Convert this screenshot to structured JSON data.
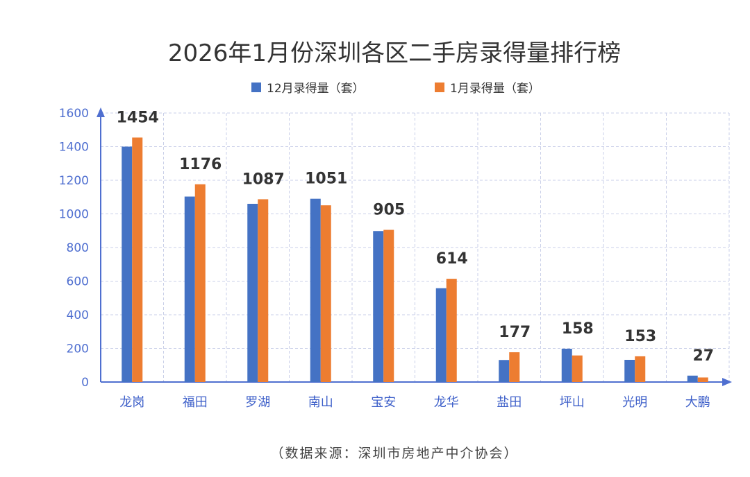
{
  "chart_data": {
    "type": "bar",
    "title": "2026年1月份深圳各区二手房录得量排行榜",
    "categories": [
      "龙岗",
      "福田",
      "罗湖",
      "南山",
      "宝安",
      "龙华",
      "盐田",
      "坪山",
      "光明",
      "大鹏"
    ],
    "series": [
      {
        "name": "12月录得量（套）",
        "values": [
          1400,
          1103,
          1060,
          1090,
          898,
          558,
          131,
          198,
          132,
          38
        ],
        "color": "#4472c4"
      },
      {
        "name": "1月录得量（套）",
        "values": [
          1454,
          1176,
          1087,
          1051,
          905,
          614,
          177,
          158,
          153,
          27
        ],
        "color": "#ed7d31"
      }
    ],
    "data_labels": [
      "1454",
      "1176",
      "1087",
      "1051",
      "905",
      "614",
      "177",
      "158",
      "153",
      "27"
    ],
    "ylim": [
      0,
      1600
    ],
    "yticks": [
      0,
      200,
      400,
      600,
      800,
      1000,
      1200,
      1400,
      1600
    ],
    "grid": true,
    "legend_position": "top-center",
    "axis_color": "#4f6fd0",
    "grid_color": "#c9cfe8",
    "source": "（数据来源：深圳市房地产中介协会）"
  }
}
